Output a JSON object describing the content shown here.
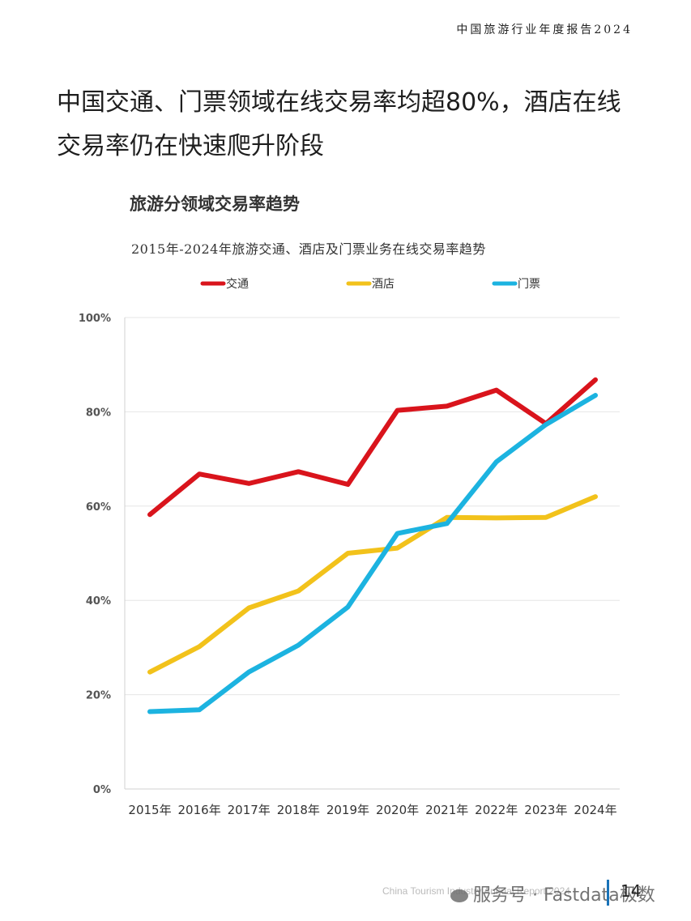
{
  "header": {
    "report_name": "中国旅游行业年度报告2024"
  },
  "headline": "中国交通、门票领域在线交易率均超80%，酒店在线交易率仍在快速爬升阶段",
  "chart_data": {
    "type": "line",
    "title": "旅游分领域交易率趋势",
    "subtitle": "2015年-2024年旅游交通、酒店及门票业务在线交易率趋势",
    "categories": [
      "2015年",
      "2016年",
      "2017年",
      "2018年",
      "2019年",
      "2020年",
      "2021年",
      "2022年",
      "2023年",
      "2024年"
    ],
    "series": [
      {
        "name": "交通",
        "color": "#d9141c",
        "values": [
          58.2,
          66.8,
          64.8,
          67.3,
          64.6,
          80.3,
          81.2,
          84.6,
          77.5,
          86.8
        ]
      },
      {
        "name": "酒店",
        "color": "#f2c21b",
        "values": [
          24.8,
          30.2,
          38.4,
          42.0,
          50.0,
          51.1,
          57.6,
          57.5,
          57.6,
          62.0
        ]
      },
      {
        "name": "门票",
        "color": "#1cb3e0",
        "values": [
          16.4,
          16.8,
          24.8,
          30.5,
          38.6,
          54.2,
          56.3,
          69.4,
          77.3,
          83.5
        ]
      }
    ],
    "ylim": [
      0,
      100
    ],
    "yticks": [
      "0%",
      "20%",
      "40%",
      "60%",
      "80%",
      "100%"
    ],
    "grid": true,
    "legend_position": "top"
  },
  "footer": {
    "report_en": "China Tourism Industry Annual Report 2024",
    "page_number": "14",
    "watermark": "服务号 · Fastdata极数"
  }
}
